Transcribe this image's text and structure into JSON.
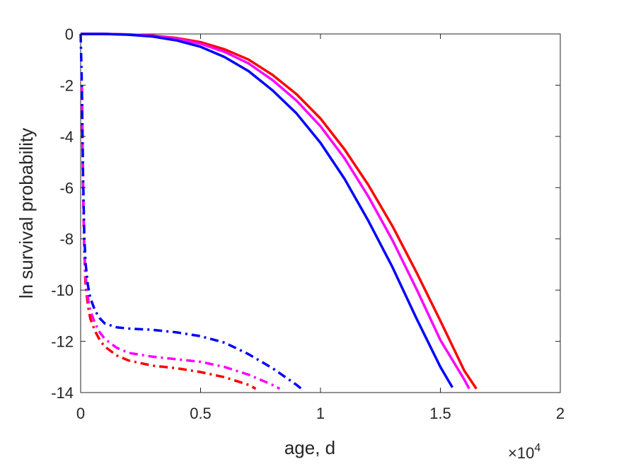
{
  "chart_data": {
    "type": "line",
    "xlabel": "age, d",
    "ylabel": "ln survival probability",
    "x_exponent_label": "×10",
    "x_exponent_power": "4",
    "xlim": [
      0,
      20000
    ],
    "ylim": [
      -14,
      0
    ],
    "xticks": [
      0,
      5000,
      10000,
      15000,
      20000
    ],
    "xtick_labels": [
      "0",
      "0.5",
      "1",
      "1.5",
      "2"
    ],
    "yticks": [
      0,
      -2,
      -4,
      -6,
      -8,
      -10,
      -12,
      -14
    ],
    "ytick_labels": [
      "0",
      "-2",
      "-4",
      "-6",
      "-8",
      "-10",
      "-12",
      "-14"
    ],
    "grid": false,
    "series": [
      {
        "color": "#ff0000",
        "style": "solid",
        "x": [
          0,
          1000,
          2000,
          3000,
          4000,
          5000,
          6000,
          7000,
          8000,
          9000,
          10000,
          11000,
          12000,
          13000,
          14000,
          15000,
          16000,
          16500
        ],
        "y": [
          0,
          0,
          -0.02,
          -0.06,
          -0.16,
          -0.32,
          -0.6,
          -1.0,
          -1.6,
          -2.35,
          -3.3,
          -4.5,
          -5.9,
          -7.5,
          -9.3,
          -11.2,
          -13.15,
          -13.85
        ]
      },
      {
        "color": "#ff00ff",
        "style": "solid",
        "x": [
          0,
          1000,
          2000,
          3000,
          4000,
          5000,
          6000,
          7000,
          8000,
          9000,
          10000,
          11000,
          12000,
          13000,
          14000,
          15000,
          16000,
          16200
        ],
        "y": [
          0,
          0,
          -0.02,
          -0.07,
          -0.18,
          -0.38,
          -0.7,
          -1.15,
          -1.8,
          -2.6,
          -3.6,
          -4.85,
          -6.35,
          -8.05,
          -9.95,
          -11.95,
          -13.5,
          -13.85
        ]
      },
      {
        "color": "#0000ff",
        "style": "solid",
        "x": [
          0,
          1000,
          2000,
          3000,
          4000,
          5000,
          6000,
          7000,
          8000,
          9000,
          10000,
          11000,
          12000,
          13000,
          14000,
          15000,
          15500
        ],
        "y": [
          0,
          0,
          -0.03,
          -0.1,
          -0.25,
          -0.5,
          -0.9,
          -1.45,
          -2.2,
          -3.1,
          -4.25,
          -5.65,
          -7.3,
          -9.1,
          -11.1,
          -13.0,
          -13.8
        ]
      },
      {
        "color": "#ff0000",
        "style": "dashdot",
        "x": [
          50,
          100,
          150,
          200,
          300,
          400,
          600,
          800,
          1000,
          1500,
          2000,
          3000,
          4000,
          5000,
          6000,
          7000,
          7300
        ],
        "y": [
          -2,
          -6,
          -8.5,
          -9.7,
          -10.6,
          -11.1,
          -11.6,
          -11.95,
          -12.2,
          -12.55,
          -12.75,
          -12.95,
          -13.05,
          -13.2,
          -13.4,
          -13.7,
          -13.85
        ]
      },
      {
        "color": "#ff00ff",
        "style": "dashdot",
        "x": [
          50,
          100,
          150,
          200,
          300,
          400,
          600,
          800,
          1000,
          1500,
          2000,
          3000,
          4000,
          5000,
          6000,
          7000,
          8000,
          8300
        ],
        "y": [
          -2,
          -5.8,
          -8.3,
          -9.4,
          -10.3,
          -10.8,
          -11.3,
          -11.65,
          -11.9,
          -12.25,
          -12.45,
          -12.6,
          -12.7,
          -12.8,
          -13.0,
          -13.3,
          -13.7,
          -13.85
        ]
      },
      {
        "color": "#0000ff",
        "style": "dashdot",
        "x": [
          0,
          50,
          100,
          150,
          200,
          300,
          400,
          600,
          800,
          1000,
          1500,
          2000,
          3000,
          4000,
          5000,
          6000,
          7000,
          8000,
          9000,
          9200
        ],
        "y": [
          0,
          -2,
          -5.5,
          -7.8,
          -8.9,
          -9.8,
          -10.3,
          -10.8,
          -11.1,
          -11.3,
          -11.45,
          -11.5,
          -11.55,
          -11.65,
          -11.8,
          -12.05,
          -12.5,
          -13.05,
          -13.7,
          -13.85
        ]
      }
    ]
  }
}
